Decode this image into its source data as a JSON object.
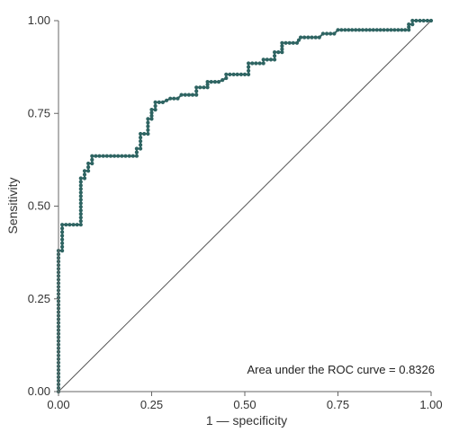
{
  "chart_data": {
    "type": "line",
    "title": "",
    "xlabel": "1 — specificity",
    "ylabel": "Sensitivity",
    "xlim": [
      0,
      1
    ],
    "ylim": [
      0,
      1
    ],
    "x_ticks": [
      "0.00",
      "0.25",
      "0.50",
      "0.75",
      "1.00"
    ],
    "y_ticks": [
      "0.00",
      "0.25",
      "0.50",
      "0.75",
      "1.00"
    ],
    "grid": false,
    "legend": "none",
    "annotation": "Area under the ROC curve = 0.8326",
    "colors": {
      "curve": "#2e5f5e",
      "marker": "#2e6462",
      "reference": "#555555",
      "axis": "#666666"
    },
    "series": [
      {
        "points": [
          [
            0.0,
            0.0
          ],
          [
            0.0,
            0.38
          ],
          [
            0.01,
            0.38
          ],
          [
            0.01,
            0.45
          ],
          [
            0.02,
            0.45
          ],
          [
            0.06,
            0.45
          ],
          [
            0.06,
            0.575
          ],
          [
            0.07,
            0.575
          ],
          [
            0.07,
            0.595
          ],
          [
            0.08,
            0.595
          ],
          [
            0.08,
            0.615
          ],
          [
            0.09,
            0.615
          ],
          [
            0.09,
            0.635
          ],
          [
            0.15,
            0.635
          ],
          [
            0.21,
            0.635
          ],
          [
            0.21,
            0.655
          ],
          [
            0.22,
            0.655
          ],
          [
            0.22,
            0.695
          ],
          [
            0.24,
            0.695
          ],
          [
            0.24,
            0.735
          ],
          [
            0.25,
            0.735
          ],
          [
            0.25,
            0.76
          ],
          [
            0.26,
            0.76
          ],
          [
            0.26,
            0.78
          ],
          [
            0.28,
            0.78
          ],
          [
            0.29,
            0.785
          ],
          [
            0.3,
            0.79
          ],
          [
            0.32,
            0.79
          ],
          [
            0.33,
            0.8
          ],
          [
            0.37,
            0.8
          ],
          [
            0.37,
            0.82
          ],
          [
            0.4,
            0.82
          ],
          [
            0.4,
            0.835
          ],
          [
            0.43,
            0.835
          ],
          [
            0.45,
            0.845
          ],
          [
            0.45,
            0.855
          ],
          [
            0.51,
            0.855
          ],
          [
            0.51,
            0.885
          ],
          [
            0.55,
            0.885
          ],
          [
            0.55,
            0.895
          ],
          [
            0.58,
            0.895
          ],
          [
            0.58,
            0.915
          ],
          [
            0.6,
            0.915
          ],
          [
            0.6,
            0.94
          ],
          [
            0.64,
            0.94
          ],
          [
            0.65,
            0.955
          ],
          [
            0.7,
            0.955
          ],
          [
            0.71,
            0.965
          ],
          [
            0.74,
            0.965
          ],
          [
            0.75,
            0.975
          ],
          [
            0.94,
            0.975
          ],
          [
            0.94,
            0.99
          ],
          [
            0.95,
            0.99
          ],
          [
            0.95,
            1.0
          ],
          [
            0.97,
            1.0
          ],
          [
            1.0,
            1.0
          ]
        ]
      },
      {
        "points": [
          [
            0,
            0
          ],
          [
            1,
            1
          ]
        ]
      }
    ]
  }
}
